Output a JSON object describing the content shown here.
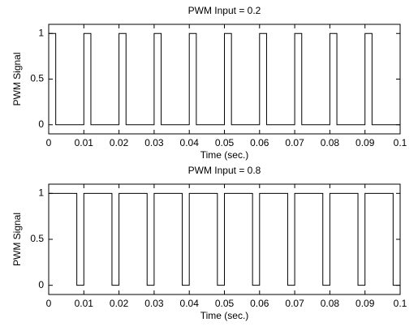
{
  "chart_data": [
    {
      "type": "line",
      "title": "PWM Input = 0.2",
      "xlabel": "Time (sec.)",
      "ylabel": "PWM Signal",
      "color": "#000000",
      "x": [
        0,
        0,
        0.002,
        0.002,
        0.01,
        0.01,
        0.012,
        0.012,
        0.02,
        0.02,
        0.022,
        0.022,
        0.03,
        0.03,
        0.032,
        0.032,
        0.04,
        0.04,
        0.042,
        0.042,
        0.05,
        0.05,
        0.052,
        0.052,
        0.06,
        0.06,
        0.062,
        0.062,
        0.07,
        0.07,
        0.072,
        0.072,
        0.08,
        0.08,
        0.082,
        0.082,
        0.09,
        0.09,
        0.092,
        0.092,
        0.1
      ],
      "values": [
        0,
        1,
        1,
        0,
        0,
        1,
        1,
        0,
        0,
        1,
        1,
        0,
        0,
        1,
        1,
        0,
        0,
        1,
        1,
        0,
        0,
        1,
        1,
        0,
        0,
        1,
        1,
        0,
        0,
        1,
        1,
        0,
        0,
        1,
        1,
        0,
        0,
        1,
        1,
        0,
        0
      ],
      "xlim": [
        0,
        0.1
      ],
      "xticks": [
        0,
        0.01,
        0.02,
        0.03,
        0.04,
        0.05,
        0.06,
        0.07,
        0.08,
        0.09,
        0.1
      ],
      "ylim": [
        -0.1,
        1.1
      ],
      "yticks": [
        0,
        0.5,
        1
      ]
    },
    {
      "type": "line",
      "title": "PWM Input = 0.8",
      "xlabel": "Time (sec.)",
      "ylabel": "PWM Signal",
      "color": "#000000",
      "x": [
        0,
        0.008,
        0.008,
        0.01,
        0.01,
        0.018,
        0.018,
        0.02,
        0.02,
        0.028,
        0.028,
        0.03,
        0.03,
        0.038,
        0.038,
        0.04,
        0.04,
        0.048,
        0.048,
        0.05,
        0.05,
        0.058,
        0.058,
        0.06,
        0.06,
        0.068,
        0.068,
        0.07,
        0.07,
        0.078,
        0.078,
        0.08,
        0.08,
        0.088,
        0.088,
        0.09,
        0.09,
        0.098,
        0.098,
        0.1,
        0.1
      ],
      "values": [
        1,
        1,
        0,
        0,
        1,
        1,
        0,
        0,
        1,
        1,
        0,
        0,
        1,
        1,
        0,
        0,
        1,
        1,
        0,
        0,
        1,
        1,
        0,
        0,
        1,
        1,
        0,
        0,
        1,
        1,
        0,
        0,
        1,
        1,
        0,
        0,
        1,
        1,
        0,
        0,
        1
      ],
      "xlim": [
        0,
        0.1
      ],
      "xticks": [
        0,
        0.01,
        0.02,
        0.03,
        0.04,
        0.05,
        0.06,
        0.07,
        0.08,
        0.09,
        0.1
      ],
      "ylim": [
        -0.1,
        1.1
      ],
      "yticks": [
        0,
        0.5,
        1
      ]
    }
  ]
}
